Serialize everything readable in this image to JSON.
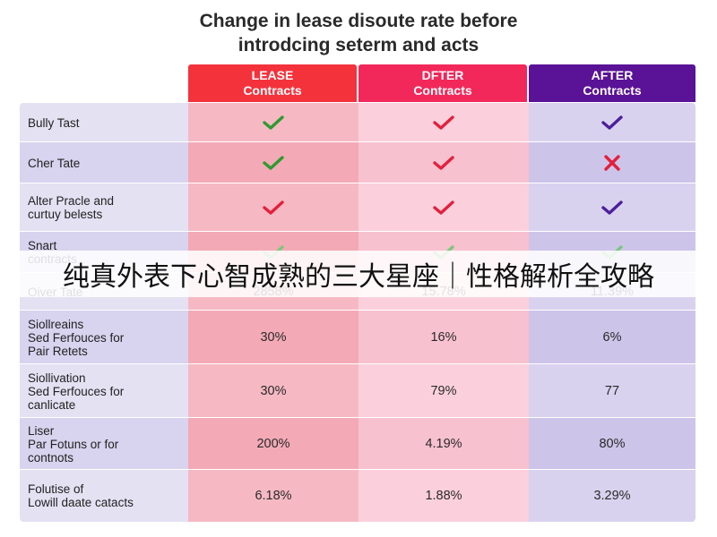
{
  "title_lines": [
    "Change in lease disoute rate before",
    "introdcing seterm and acts"
  ],
  "columns": [
    {
      "line1": "LEASE",
      "line2": "Contracts",
      "color": "#f4323c"
    },
    {
      "line1": "DFTER",
      "line2": "Contracts",
      "color": "#f2285a"
    },
    {
      "line1": "AFTER",
      "line2": "Contracts",
      "color": "#5a1296"
    }
  ],
  "rows": [
    {
      "label": [
        "Bully Tast"
      ],
      "kind": "mark",
      "cells": [
        "check",
        "check",
        "check"
      ],
      "colors": [
        "#2e9a2e",
        "#e2203c",
        "#4b1f9c"
      ]
    },
    {
      "label": [
        "Cher Tate"
      ],
      "kind": "mark",
      "cells": [
        "check",
        "check",
        "cross"
      ],
      "colors": [
        "#2e9a2e",
        "#e2203c",
        "#e2203c"
      ]
    },
    {
      "label": [
        "Alter Pracle and",
        "curtuy belests"
      ],
      "kind": "mark",
      "cells": [
        "check",
        "check",
        "check"
      ],
      "colors": [
        "#e2203c",
        "#e2203c",
        "#4b1f9c"
      ]
    },
    {
      "label": [
        "Snart",
        "contracts"
      ],
      "kind": "mark",
      "cells": [
        "check",
        "check",
        "check"
      ],
      "colors": [
        "#7cc87c",
        "#7cc87c",
        "#7cc87c"
      ]
    },
    {
      "label": [
        "Oiver Tate"
      ],
      "kind": "value",
      "cells": [
        "2858%",
        "15.78%",
        "11.39%"
      ]
    },
    {
      "label": [
        "Siollreains",
        "Sed Ferfouces for",
        "Pair Retets"
      ],
      "kind": "value",
      "cells": [
        "30%",
        "16%",
        "6%"
      ]
    },
    {
      "label": [
        "Siollivation",
        "Sed Ferfouces for",
        "canlicate"
      ],
      "kind": "value",
      "cells": [
        "30%",
        "79%",
        "77"
      ]
    },
    {
      "label": [
        "Liser",
        "Par Fotuns or for",
        "contnots"
      ],
      "kind": "value",
      "cells": [
        "200%",
        "4.19%",
        "80%"
      ]
    },
    {
      "label": [
        "Folutise of",
        "Lowill daate catacts"
      ],
      "kind": "value",
      "cells": [
        "6.18%",
        "1.88%",
        "3.29%"
      ]
    }
  ],
  "chart_data": {
    "type": "table",
    "title": "Change in lease disoute rate before introdcing seterm and acts",
    "columns": [
      "LEASE Contracts",
      "DFTER Contracts",
      "AFTER Contracts"
    ],
    "rows": [
      {
        "label": "Bully Tast",
        "values": [
          "check",
          "check",
          "check"
        ]
      },
      {
        "label": "Cher Tate",
        "values": [
          "check",
          "check",
          "cross"
        ]
      },
      {
        "label": "Alter Pracle and curtuy belests",
        "values": [
          "check",
          "check",
          "check"
        ]
      },
      {
        "label": "Snart contracts",
        "values": [
          "check",
          "check",
          "check"
        ]
      },
      {
        "label": "Oiver Tate",
        "values": [
          "2858%",
          "15.78%",
          "11.39%"
        ]
      },
      {
        "label": "Siollreains Sed Ferfouces for Pair Retets",
        "values": [
          "30%",
          "16%",
          "6%"
        ]
      },
      {
        "label": "Siollivation Sed Ferfouces for canlicate",
        "values": [
          "30%",
          "79%",
          "77"
        ]
      },
      {
        "label": "Liser Par Fotuns or for contnots",
        "values": [
          "200%",
          "4.19%",
          "80%"
        ]
      },
      {
        "label": "Folutise of Lowill daate catacts",
        "values": [
          "6.18%",
          "1.88%",
          "3.29%"
        ]
      }
    ]
  },
  "overlay_caption": "纯真外表下心智成熟的三大星座｜性格解析全攻略"
}
